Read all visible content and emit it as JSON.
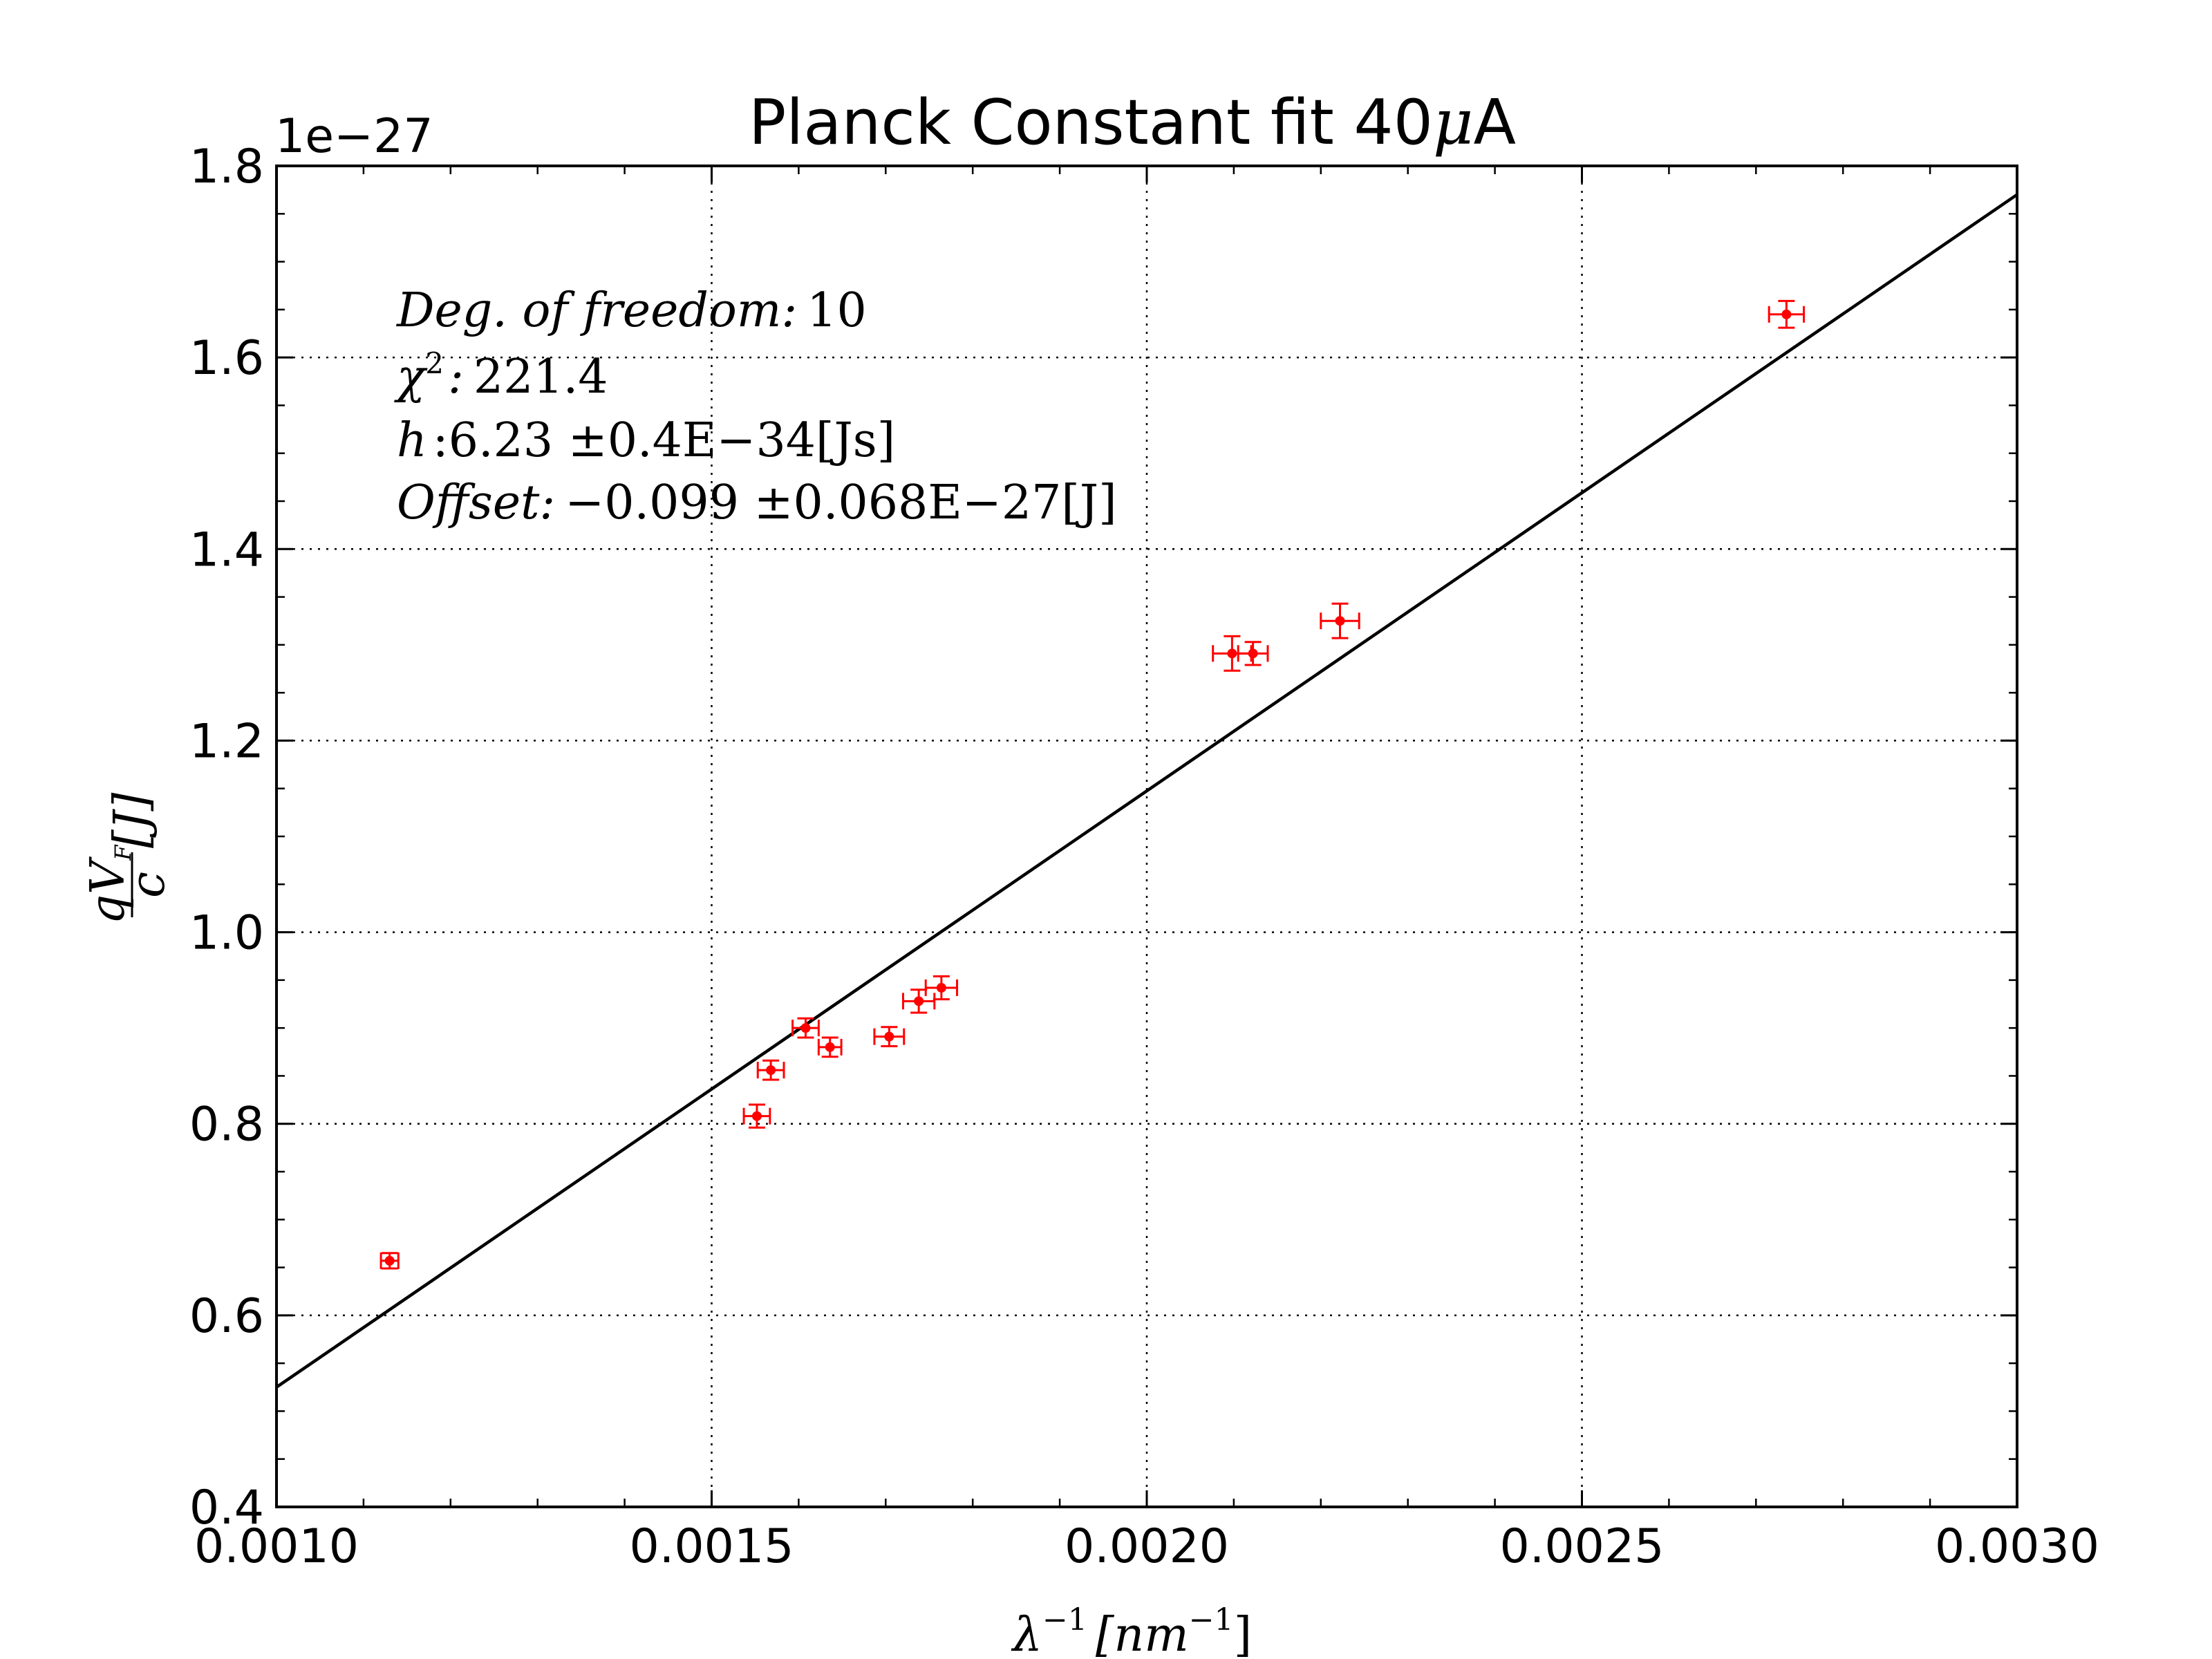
{
  "chart_data": {
    "type": "scatter",
    "title_prefix": "Planck Constant fit 40",
    "title_mu": "μ",
    "title_suffix": "A",
    "xlabel_base": "λ",
    "xlabel_sup": "−1",
    "xlabel_bracket": "[nm",
    "xlabel_bracket_sup": "−1",
    "xlabel_close": "]",
    "ylabel_q": "qV",
    "ylabel_sub": "F",
    "ylabel_den": "c",
    "ylabel_unit": "[J]",
    "y_multiplier": "1e−27",
    "xlim": [
      0.001,
      0.003
    ],
    "ylim": [
      0.4,
      1.8
    ],
    "x_ticks": [
      0.001,
      0.0015,
      0.002,
      0.0025,
      0.003
    ],
    "x_tick_labels": [
      "0.0010",
      "0.0015",
      "0.0020",
      "0.0025",
      "0.0030"
    ],
    "y_ticks": [
      0.4,
      0.6,
      0.8,
      1.0,
      1.2,
      1.4,
      1.6,
      1.8
    ],
    "y_tick_labels": [
      "0.4",
      "0.6",
      "0.8",
      "1.0",
      "1.2",
      "1.4",
      "1.6",
      "1.8"
    ],
    "grid": true,
    "series": [
      {
        "marker_color": "#ff0000",
        "points": [
          {
            "x": 0.00113,
            "y": 0.657,
            "xerr": 1e-05,
            "yerr": 0.008
          },
          {
            "x": 0.001552,
            "y": 0.808,
            "xerr": 1.5e-05,
            "yerr": 0.012
          },
          {
            "x": 0.001568,
            "y": 0.856,
            "xerr": 1.5e-05,
            "yerr": 0.01
          },
          {
            "x": 0.001608,
            "y": 0.9,
            "xerr": 1.5e-05,
            "yerr": 0.01
          },
          {
            "x": 0.001636,
            "y": 0.88,
            "xerr": 1.3e-05,
            "yerr": 0.01
          },
          {
            "x": 0.001704,
            "y": 0.891,
            "xerr": 1.7e-05,
            "yerr": 0.01
          },
          {
            "x": 0.001738,
            "y": 0.928,
            "xerr": 1.8e-05,
            "yerr": 0.012
          },
          {
            "x": 0.001764,
            "y": 0.942,
            "xerr": 1.8e-05,
            "yerr": 0.012
          },
          {
            "x": 0.002098,
            "y": 1.291,
            "xerr": 2.2e-05,
            "yerr": 0.018
          },
          {
            "x": 0.002122,
            "y": 1.291,
            "xerr": 1.7e-05,
            "yerr": 0.012
          },
          {
            "x": 0.002222,
            "y": 1.325,
            "xerr": 2.2e-05,
            "yerr": 0.018
          },
          {
            "x": 0.002735,
            "y": 1.645,
            "xerr": 2e-05,
            "yerr": 0.014
          }
        ]
      }
    ],
    "fit_line": {
      "x": [
        0.001,
        0.003
      ],
      "y": [
        0.525,
        1.77
      ],
      "color": "#000000"
    },
    "annotations": {
      "dof_label": "Deg. of freedom:",
      "dof_value": "10",
      "chi_symbol": "χ",
      "chi_sup": "2",
      "chi_label": ":",
      "chi_value": "221.4",
      "h_label": "h",
      "h_value": ":6.23 ±0.4E−34[Js]",
      "offset_label": "Offset:",
      "offset_value": "−0.099 ±0.068E−27[J]"
    }
  }
}
